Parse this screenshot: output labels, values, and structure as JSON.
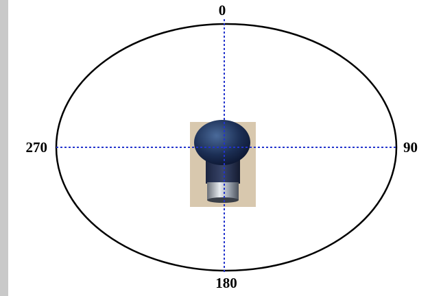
{
  "diagram": {
    "angle_labels": {
      "top": "0",
      "right": "90",
      "bottom": "180",
      "left": "270"
    }
  }
}
